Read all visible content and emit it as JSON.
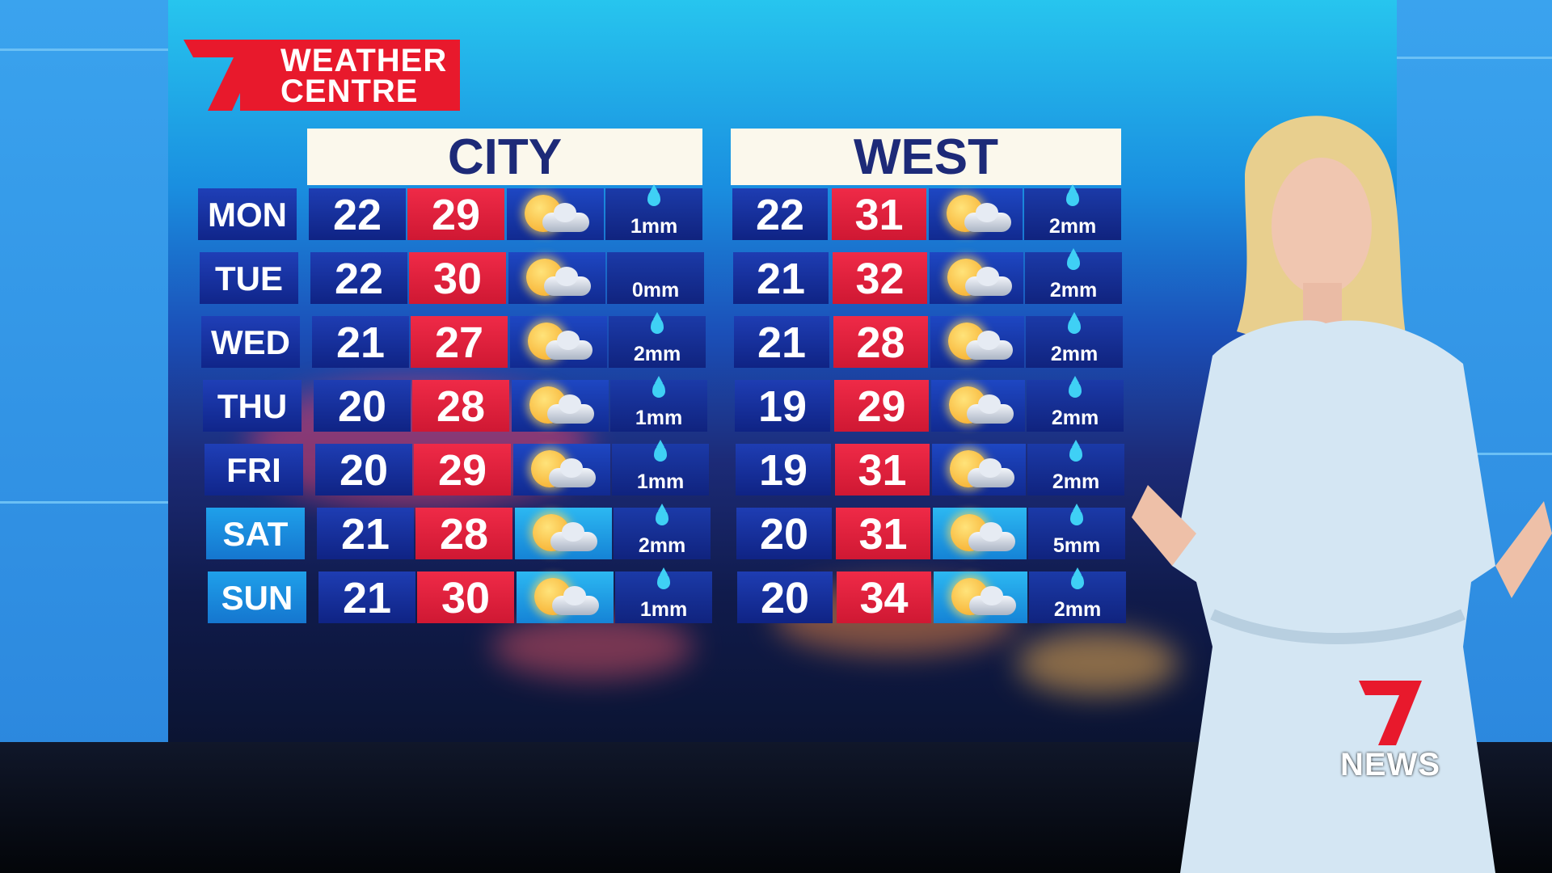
{
  "branding": {
    "logo_line1": "WEATHER",
    "logo_line2": "CENTRE",
    "network_logo": "7NEWS",
    "network_logo_text": "NEWS",
    "accent": "#e8192c"
  },
  "days": [
    "MON",
    "TUE",
    "WED",
    "THU",
    "FRI",
    "SAT",
    "SUN"
  ],
  "weekend_days": [
    "SAT",
    "SUN"
  ],
  "regions": [
    {
      "title": "CITY",
      "forecast": [
        {
          "low": "22",
          "high": "29",
          "icon": "partly-cloudy-icon",
          "rain": "1mm",
          "rain_icon": true
        },
        {
          "low": "22",
          "high": "30",
          "icon": "mostly-sunny-icon",
          "rain": "0mm",
          "rain_icon": false
        },
        {
          "low": "21",
          "high": "27",
          "icon": "partly-cloudy-icon",
          "rain": "2mm",
          "rain_icon": true
        },
        {
          "low": "20",
          "high": "28",
          "icon": "partly-cloudy-icon",
          "rain": "1mm",
          "rain_icon": true
        },
        {
          "low": "20",
          "high": "29",
          "icon": "partly-cloudy-icon",
          "rain": "1mm",
          "rain_icon": true
        },
        {
          "low": "21",
          "high": "28",
          "icon": "partly-cloudy-icon",
          "rain": "2mm",
          "rain_icon": true
        },
        {
          "low": "21",
          "high": "30",
          "icon": "partly-cloudy-icon",
          "rain": "1mm",
          "rain_icon": true
        }
      ]
    },
    {
      "title": "WEST",
      "forecast": [
        {
          "low": "22",
          "high": "31",
          "icon": "partly-cloudy-icon",
          "rain": "2mm",
          "rain_icon": true
        },
        {
          "low": "21",
          "high": "32",
          "icon": "partly-cloudy-icon",
          "rain": "2mm",
          "rain_icon": true
        },
        {
          "low": "21",
          "high": "28",
          "icon": "partly-cloudy-icon",
          "rain": "2mm",
          "rain_icon": true
        },
        {
          "low": "19",
          "high": "29",
          "icon": "partly-cloudy-icon",
          "rain": "2mm",
          "rain_icon": true
        },
        {
          "low": "19",
          "high": "31",
          "icon": "partly-cloudy-icon",
          "rain": "2mm",
          "rain_icon": true
        },
        {
          "low": "20",
          "high": "31",
          "icon": "partly-cloudy-icon",
          "rain": "5mm",
          "rain_icon": true
        },
        {
          "low": "20",
          "high": "34",
          "icon": "partly-cloudy-icon",
          "rain": "2mm",
          "rain_icon": true
        }
      ]
    }
  ],
  "colors": {
    "low_temp": "#1e3db3",
    "high_temp": "#ef2a47",
    "header_bg": "#fbf8ec",
    "header_text": "#1d2a78"
  }
}
